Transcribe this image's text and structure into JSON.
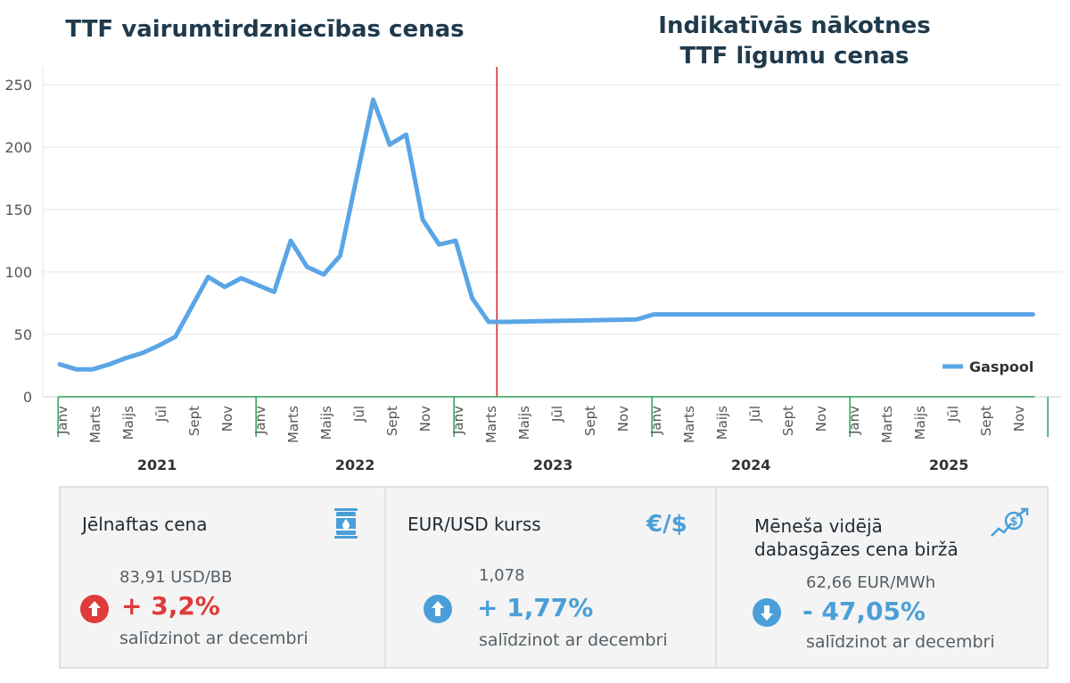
{
  "header": {
    "left_title": "TTF vairumtirdzniecības cenas",
    "right_title_line1": "Indikatīvās nākotnes",
    "right_title_line2": "TTF līgumu cenas"
  },
  "chart_data": {
    "type": "line",
    "ylim": [
      0,
      250
    ],
    "yticks": [
      0,
      50,
      100,
      150,
      200,
      250
    ],
    "grid": true,
    "legend_position": "bottom-right",
    "divider_after_month_index": 26.5,
    "years": [
      "2021",
      "2022",
      "2023",
      "2024",
      "2025"
    ],
    "month_tick_labels": [
      "Janv",
      "Marts",
      "Maijs",
      "Jūl",
      "Sept",
      "Nov"
    ],
    "series": [
      {
        "name": "Gaspool",
        "color": "#5aa5e6",
        "points": [
          {
            "m": 0,
            "v": 26
          },
          {
            "m": 1,
            "v": 22
          },
          {
            "m": 2,
            "v": 22
          },
          {
            "m": 3,
            "v": 26
          },
          {
            "m": 4,
            "v": 31
          },
          {
            "m": 5,
            "v": 35
          },
          {
            "m": 6,
            "v": 41
          },
          {
            "m": 7,
            "v": 48
          },
          {
            "m": 8,
            "v": 72
          },
          {
            "m": 9,
            "v": 96
          },
          {
            "m": 10,
            "v": 88
          },
          {
            "m": 11,
            "v": 95
          },
          {
            "m": 13,
            "v": 84
          },
          {
            "m": 14,
            "v": 125
          },
          {
            "m": 15,
            "v": 104
          },
          {
            "m": 16,
            "v": 98
          },
          {
            "m": 17,
            "v": 113
          },
          {
            "m": 19,
            "v": 238
          },
          {
            "m": 20,
            "v": 202
          },
          {
            "m": 21,
            "v": 210
          },
          {
            "m": 22,
            "v": 142
          },
          {
            "m": 23,
            "v": 122
          },
          {
            "m": 24,
            "v": 125
          },
          {
            "m": 25,
            "v": 79
          },
          {
            "m": 26,
            "v": 60
          },
          {
            "m": 27,
            "v": 60
          },
          {
            "m": 35,
            "v": 62
          },
          {
            "m": 36,
            "v": 66
          },
          {
            "m": 59,
            "v": 66
          }
        ]
      }
    ]
  },
  "cards": [
    {
      "title": "Jēlnaftas cena",
      "icon": "oil-barrel-icon",
      "value": "83,91 USD/BB",
      "change": "+ 3,2%",
      "direction": "up",
      "color": "#e03a3a",
      "note": "salīdzinot ar decembri"
    },
    {
      "title": "EUR/USD kurss",
      "icon": "currency-icon",
      "icon_text": "€/$",
      "value": "1,078",
      "change": "+ 1,77%",
      "direction": "up",
      "color": "#4a9fd8",
      "note": "salīdzinot ar decembri"
    },
    {
      "title_line1": "Mēneša vidējā",
      "title_line2": "dabasgāzes cena biržā",
      "icon": "price-trend-icon",
      "value": "62,66 EUR/MWh",
      "change": "- 47,05%",
      "direction": "down",
      "color": "#4a9fd8",
      "note": "salīdzinot ar decembri"
    }
  ]
}
